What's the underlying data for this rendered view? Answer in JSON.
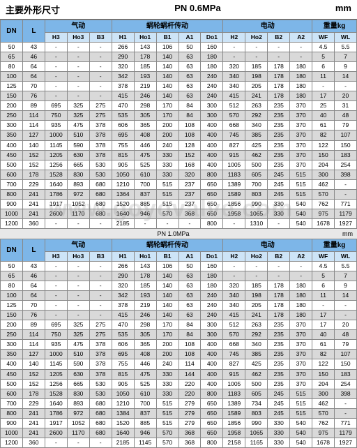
{
  "title_left": "主要外形尺寸",
  "title_mid": "PN 0.6MPa",
  "title_right": "mm",
  "sub_mid": "PN 1.0MPa",
  "sub_right": "mm",
  "watermark": "www.goyovalve.com",
  "group_labels": [
    "",
    "",
    "气动",
    "蜗轮蜗杆传动",
    "电动",
    "重量kg"
  ],
  "group_spans": [
    1,
    1,
    3,
    5,
    4,
    2
  ],
  "cols": [
    "DN",
    "L",
    "H3",
    "Ho3",
    "B3",
    "H1",
    "Ho1",
    "B1",
    "A1",
    "Do1",
    "H2",
    "Ho2",
    "B2",
    "A2",
    "WF",
    "WL"
  ],
  "tables": [
    [
      [
        "50",
        "43",
        "-",
        "-",
        "-",
        "266",
        "143",
        "106",
        "50",
        "160",
        "-",
        "-",
        "-",
        "-",
        "4.5",
        "5.5"
      ],
      [
        "65",
        "46",
        "-",
        "-",
        "-",
        "290",
        "178",
        "140",
        "63",
        "180",
        "-",
        "-",
        "-",
        "-",
        "5",
        "7"
      ],
      [
        "80",
        "64",
        "-",
        "-",
        "-",
        "320",
        "185",
        "140",
        "63",
        "180",
        "320",
        "185",
        "178",
        "180",
        "6",
        "9"
      ],
      [
        "100",
        "64",
        "-",
        "-",
        "-",
        "342",
        "193",
        "140",
        "63",
        "240",
        "340",
        "198",
        "178",
        "180",
        "11",
        "14"
      ],
      [
        "125",
        "70",
        "-",
        "-",
        "-",
        "378",
        "219",
        "140",
        "63",
        "240",
        "340",
        "205",
        "178",
        "180",
        "-",
        "-"
      ],
      [
        "150",
        "76",
        "-",
        "-",
        "-",
        "415",
        "246",
        "140",
        "63",
        "240",
        "415",
        "241",
        "178",
        "180",
        "17",
        "20"
      ],
      [
        "200",
        "89",
        "695",
        "325",
        "275",
        "470",
        "298",
        "170",
        "84",
        "300",
        "512",
        "263",
        "235",
        "370",
        "25",
        "31"
      ],
      [
        "250",
        "114",
        "750",
        "325",
        "275",
        "535",
        "305",
        "170",
        "84",
        "300",
        "570",
        "292",
        "235",
        "370",
        "40",
        "48"
      ],
      [
        "300",
        "114",
        "935",
        "475",
        "378",
        "606",
        "365",
        "200",
        "108",
        "400",
        "668",
        "340",
        "235",
        "370",
        "61",
        "79"
      ],
      [
        "350",
        "127",
        "1000",
        "510",
        "378",
        "695",
        "408",
        "200",
        "108",
        "400",
        "745",
        "385",
        "235",
        "370",
        "82",
        "107"
      ],
      [
        "400",
        "140",
        "1145",
        "590",
        "378",
        "755",
        "446",
        "240",
        "128",
        "400",
        "827",
        "425",
        "235",
        "370",
        "122",
        "150"
      ],
      [
        "450",
        "152",
        "1205",
        "630",
        "378",
        "815",
        "475",
        "330",
        "152",
        "400",
        "915",
        "462",
        "235",
        "370",
        "150",
        "183"
      ],
      [
        "500",
        "152",
        "1256",
        "665",
        "530",
        "905",
        "525",
        "330",
        "168",
        "400",
        "1005",
        "500",
        "235",
        "370",
        "204",
        "254"
      ],
      [
        "600",
        "178",
        "1528",
        "830",
        "530",
        "1050",
        "610",
        "330",
        "320",
        "800",
        "1183",
        "605",
        "245",
        "515",
        "300",
        "398"
      ],
      [
        "700",
        "229",
        "1640",
        "893",
        "680",
        "1210",
        "700",
        "515",
        "237",
        "650",
        "1389",
        "700",
        "245",
        "515",
        "462",
        "-"
      ],
      [
        "800",
        "241",
        "1786",
        "972",
        "680",
        "1364",
        "837",
        "515",
        "237",
        "650",
        "1589",
        "803",
        "245",
        "515",
        "570",
        "-"
      ],
      [
        "900",
        "241",
        "1917",
        "1052",
        "680",
        "1520",
        "885",
        "515",
        "237",
        "650",
        "1856",
        "990",
        "330",
        "540",
        "762",
        "771"
      ],
      [
        "1000",
        "241",
        "2600",
        "1170",
        "680",
        "1640",
        "946",
        "570",
        "368",
        "650",
        "1958",
        "1065",
        "330",
        "540",
        "975",
        "1179"
      ],
      [
        "1200",
        "360",
        "-",
        "-",
        "-",
        "2185",
        "-",
        "-",
        "-",
        "800",
        "-",
        "1310",
        "-",
        "540",
        "1678",
        "1927"
      ]
    ],
    [
      [
        "50",
        "43",
        "-",
        "-",
        "-",
        "266",
        "143",
        "106",
        "50",
        "160",
        "-",
        "-",
        "-",
        "-",
        "4.5",
        "5.5"
      ],
      [
        "65",
        "46",
        "-",
        "-",
        "-",
        "290",
        "178",
        "140",
        "63",
        "180",
        "-",
        "-",
        "-",
        "-",
        "5",
        "7"
      ],
      [
        "80",
        "64",
        "-",
        "-",
        "-",
        "320",
        "185",
        "140",
        "63",
        "180",
        "320",
        "185",
        "178",
        "180",
        "6",
        "9"
      ],
      [
        "100",
        "64",
        "-",
        "-",
        "-",
        "342",
        "193",
        "140",
        "63",
        "240",
        "340",
        "198",
        "178",
        "180",
        "11",
        "14"
      ],
      [
        "125",
        "70",
        "-",
        "-",
        "-",
        "378",
        "219",
        "140",
        "63",
        "240",
        "340",
        "205",
        "178",
        "180",
        "-",
        "-"
      ],
      [
        "150",
        "76",
        "-",
        "-",
        "-",
        "415",
        "246",
        "140",
        "63",
        "240",
        "415",
        "241",
        "178",
        "180",
        "17",
        "-"
      ],
      [
        "200",
        "89",
        "695",
        "325",
        "275",
        "470",
        "298",
        "170",
        "84",
        "300",
        "512",
        "263",
        "235",
        "370",
        "17",
        "20"
      ],
      [
        "250",
        "114",
        "750",
        "325",
        "275",
        "535",
        "305",
        "170",
        "84",
        "300",
        "570",
        "292",
        "235",
        "370",
        "40",
        "48"
      ],
      [
        "300",
        "114",
        "935",
        "475",
        "378",
        "606",
        "365",
        "200",
        "108",
        "400",
        "668",
        "340",
        "235",
        "370",
        "61",
        "79"
      ],
      [
        "350",
        "127",
        "1000",
        "510",
        "378",
        "695",
        "408",
        "200",
        "108",
        "400",
        "745",
        "385",
        "235",
        "370",
        "82",
        "107"
      ],
      [
        "400",
        "140",
        "1145",
        "590",
        "378",
        "755",
        "446",
        "240",
        "114",
        "400",
        "827",
        "425",
        "235",
        "370",
        "122",
        "150"
      ],
      [
        "450",
        "152",
        "1205",
        "630",
        "378",
        "815",
        "475",
        "330",
        "144",
        "400",
        "915",
        "462",
        "235",
        "370",
        "150",
        "183"
      ],
      [
        "500",
        "152",
        "1256",
        "665",
        "530",
        "905",
        "525",
        "330",
        "220",
        "400",
        "1005",
        "500",
        "235",
        "370",
        "204",
        "254"
      ],
      [
        "600",
        "178",
        "1528",
        "830",
        "530",
        "1050",
        "610",
        "330",
        "220",
        "800",
        "1183",
        "605",
        "245",
        "515",
        "300",
        "398"
      ],
      [
        "700",
        "229",
        "1640",
        "893",
        "680",
        "1210",
        "700",
        "515",
        "279",
        "650",
        "1389",
        "734",
        "245",
        "515",
        "462",
        "-"
      ],
      [
        "800",
        "241",
        "1786",
        "972",
        "680",
        "1384",
        "837",
        "515",
        "279",
        "650",
        "1589",
        "803",
        "245",
        "515",
        "570",
        "-"
      ],
      [
        "900",
        "241",
        "1917",
        "1052",
        "680",
        "1520",
        "885",
        "515",
        "279",
        "650",
        "1856",
        "990",
        "330",
        "540",
        "762",
        "771"
      ],
      [
        "1000",
        "241",
        "2600",
        "1170",
        "680",
        "1640",
        "946",
        "570",
        "368",
        "650",
        "1958",
        "1065",
        "330",
        "540",
        "975",
        "1179"
      ],
      [
        "1200",
        "360",
        "-",
        "-",
        "-",
        "2185",
        "1145",
        "570",
        "368",
        "800",
        "2158",
        "1165",
        "330",
        "540",
        "1678",
        "1927"
      ]
    ]
  ]
}
